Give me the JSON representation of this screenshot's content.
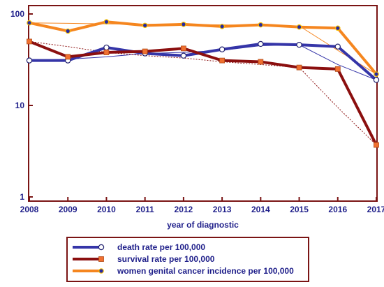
{
  "chart_data": {
    "type": "line",
    "title": "",
    "xlabel": "year of diagnostic",
    "ylabel": "",
    "yscale": "log",
    "ylim": [
      1,
      100
    ],
    "yticks": [
      1,
      10,
      100
    ],
    "grid": false,
    "legend_position": "bottom",
    "x": [
      "2008",
      "2009",
      "2010",
      "2011",
      "2012",
      "2013",
      "2014",
      "2015",
      "2016",
      "2017"
    ],
    "series": [
      {
        "name": "death rate per 100,000",
        "color": "#3535a8",
        "marker": "circle-open",
        "values": [
          31,
          31,
          43,
          37,
          35,
          41,
          47,
          46,
          44,
          19
        ],
        "trend": [
          31,
          32,
          34,
          37,
          38,
          40,
          45,
          46,
          28,
          19
        ]
      },
      {
        "name": "survival rate per 100,000",
        "color": "#8b0f0f",
        "marker": "square-orange",
        "values": [
          50,
          34,
          38,
          39,
          42,
          31,
          30,
          26,
          25,
          3.7
        ],
        "trend": [
          50,
          44,
          38,
          35,
          33,
          30,
          28,
          26,
          9.5,
          3.7
        ]
      },
      {
        "name": "women genital cancer incidence per 100,000",
        "color": "#f5861f",
        "marker": "circle-blue",
        "values": [
          80,
          65,
          82,
          75,
          77,
          73,
          76,
          72,
          70,
          22
        ],
        "trend": [
          80,
          79,
          78,
          77,
          77,
          76,
          75,
          74,
          40,
          22
        ]
      }
    ]
  }
}
